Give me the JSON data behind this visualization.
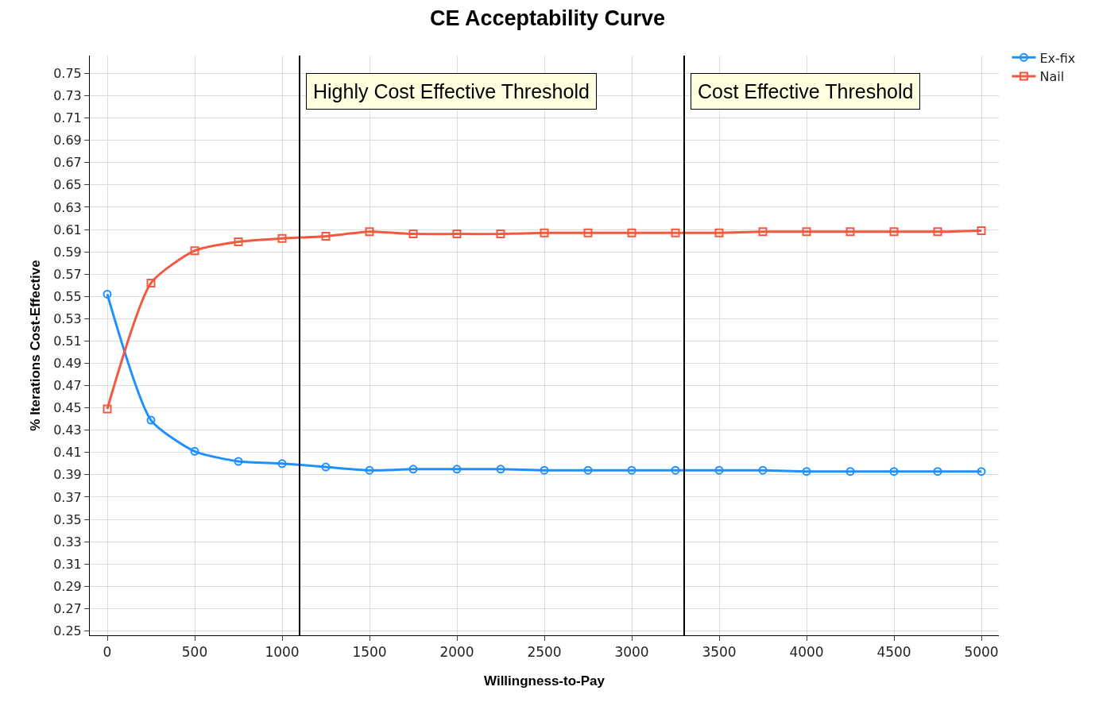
{
  "chart_data": {
    "type": "line",
    "title": "CE Acceptability Curve",
    "xlabel": "Willingness-to-Pay",
    "ylabel": "% Iterations Cost-Effective",
    "x": [
      0,
      250,
      500,
      750,
      1000,
      1250,
      1500,
      1750,
      2000,
      2250,
      2500,
      2750,
      3000,
      3250,
      3500,
      3750,
      4000,
      4250,
      4500,
      4750,
      5000
    ],
    "series": [
      {
        "name": "Ex-fix",
        "color": "#1e90ff",
        "marker": "circle",
        "values": [
          0.552,
          0.439,
          0.411,
          0.402,
          0.4,
          0.397,
          0.394,
          0.395,
          0.395,
          0.395,
          0.394,
          0.394,
          0.394,
          0.394,
          0.394,
          0.394,
          0.393,
          0.393,
          0.393,
          0.393,
          0.393
        ]
      },
      {
        "name": "Nail",
        "color": "#f4583f",
        "marker": "square",
        "values": [
          0.449,
          0.562,
          0.591,
          0.599,
          0.602,
          0.604,
          0.608,
          0.606,
          0.606,
          0.606,
          0.607,
          0.607,
          0.607,
          0.607,
          0.607,
          0.608,
          0.608,
          0.608,
          0.608,
          0.608,
          0.609
        ]
      }
    ],
    "xlim": [
      -100,
      5100
    ],
    "xticks": [
      0,
      500,
      1000,
      1500,
      2000,
      2500,
      3000,
      3500,
      4000,
      4500,
      5000
    ],
    "ylim": [
      0.246,
      0.766
    ],
    "yticks": [
      0.25,
      0.27,
      0.29,
      0.31,
      0.33,
      0.35,
      0.37,
      0.39,
      0.41,
      0.43,
      0.45,
      0.47,
      0.49,
      0.51,
      0.53,
      0.55,
      0.57,
      0.59,
      0.61,
      0.63,
      0.65,
      0.67,
      0.69,
      0.71,
      0.73,
      0.75
    ],
    "ref_lines": [
      {
        "axis": "x",
        "value": 1100,
        "label": "Highly Cost Effective Threshold",
        "color": "#000000"
      },
      {
        "axis": "x",
        "value": 3300,
        "label": "Cost Effective Threshold",
        "color": "#000000"
      }
    ],
    "grid": true,
    "legend": "top right",
    "line_style": "solid"
  }
}
